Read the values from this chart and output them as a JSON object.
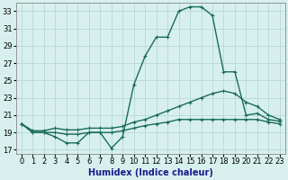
{
  "xlabel": "Humidex (Indice chaleur)",
  "background_color": "#d7f0ee",
  "grid_color": "#b8d8d4",
  "line_color": "#1a6b5a",
  "xlim": [
    -0.5,
    23.5
  ],
  "ylim": [
    16.5,
    34.0
  ],
  "xticks": [
    0,
    1,
    2,
    3,
    4,
    5,
    6,
    7,
    8,
    9,
    10,
    11,
    12,
    13,
    14,
    15,
    16,
    17,
    18,
    19,
    20,
    21,
    22,
    23
  ],
  "yticks": [
    17,
    19,
    21,
    23,
    25,
    27,
    29,
    31,
    33
  ],
  "line1_y": [
    20.0,
    19.0,
    19.0,
    18.5,
    17.8,
    17.8,
    19.0,
    19.0,
    17.2,
    18.5,
    24.5,
    27.8,
    30.0,
    30.0,
    33.0,
    33.5,
    33.5,
    32.5,
    26.0,
    26.0,
    21.0,
    21.2,
    20.5,
    20.3
  ],
  "line2_y": [
    20.0,
    19.2,
    19.2,
    19.5,
    19.3,
    19.3,
    19.5,
    19.5,
    19.5,
    19.7,
    20.2,
    20.5,
    21.0,
    21.5,
    22.0,
    22.5,
    23.0,
    23.5,
    23.8,
    23.5,
    22.5,
    22.0,
    21.0,
    20.5
  ],
  "line3_y": [
    20.0,
    19.0,
    19.0,
    19.0,
    18.8,
    18.8,
    19.0,
    19.0,
    19.0,
    19.2,
    19.5,
    19.8,
    20.0,
    20.2,
    20.5,
    20.5,
    20.5,
    20.5,
    20.5,
    20.5,
    20.5,
    20.5,
    20.2,
    20.0
  ],
  "marker": "+",
  "markersize": 3,
  "linewidth": 1.0,
  "fontsize_tick": 6,
  "fontsize_label": 7
}
